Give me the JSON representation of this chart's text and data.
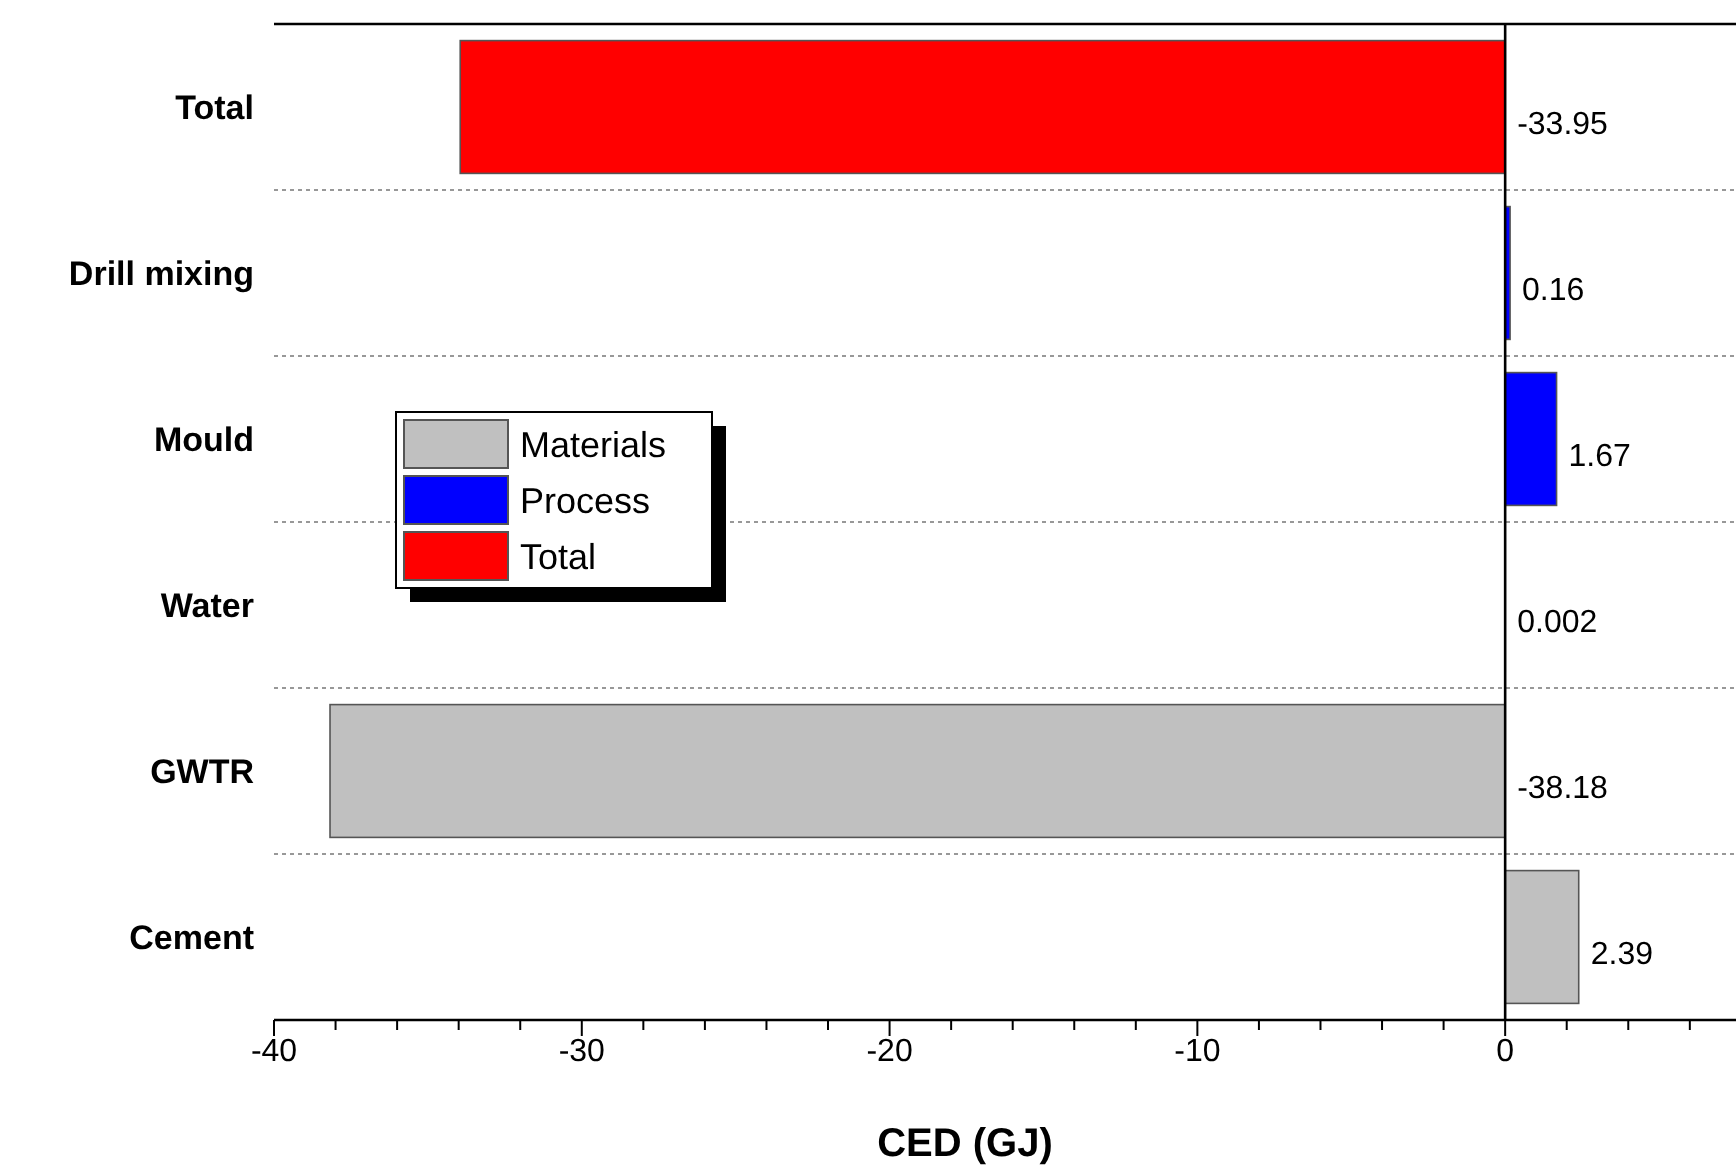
{
  "chart_data": {
    "type": "bar",
    "orientation": "horizontal",
    "stacked": true,
    "xlabel": "CED (GJ)",
    "categories": [
      "Total",
      "Drill mixing",
      "Mould",
      "Water",
      "GWTR",
      "Cement"
    ],
    "series": [
      {
        "name": "Materials",
        "color": "#c0c0c0",
        "values": [
          null,
          null,
          null,
          0.002,
          -38.18,
          2.39
        ]
      },
      {
        "name": "Process",
        "color": "#0000ff",
        "values": [
          null,
          0.16,
          1.67,
          null,
          null,
          null
        ]
      },
      {
        "name": "Total",
        "color": "#ff0000",
        "values": [
          -33.95,
          null,
          null,
          null,
          null,
          null
        ]
      }
    ],
    "xlim": [
      -40,
      7.5
    ],
    "xticks": [
      -40,
      {
        "value": -38,
        "label": null
      },
      {
        "value": -36,
        "label": null
      },
      {
        "value": -34,
        "label": null
      },
      {
        "value": -32,
        "label": null
      },
      -30,
      {
        "value": -28,
        "label": null
      },
      {
        "value": -26,
        "label": null
      },
      {
        "value": -24,
        "label": null
      },
      {
        "value": -22,
        "label": null
      },
      -20,
      {
        "value": -18,
        "label": null
      },
      {
        "value": -16,
        "label": null
      },
      {
        "value": -14,
        "label": null
      },
      {
        "value": -12,
        "label": null
      },
      -10,
      {
        "value": -8,
        "label": null
      },
      {
        "value": -6,
        "label": null
      },
      {
        "value": -4,
        "label": null
      },
      {
        "value": -2,
        "label": null
      },
      0,
      {
        "value": 2,
        "label": null
      },
      {
        "value": 4,
        "label": null
      },
      {
        "value": 6,
        "label": null
      }
    ],
    "data_labels": true,
    "grid": "y",
    "legend": "left"
  }
}
